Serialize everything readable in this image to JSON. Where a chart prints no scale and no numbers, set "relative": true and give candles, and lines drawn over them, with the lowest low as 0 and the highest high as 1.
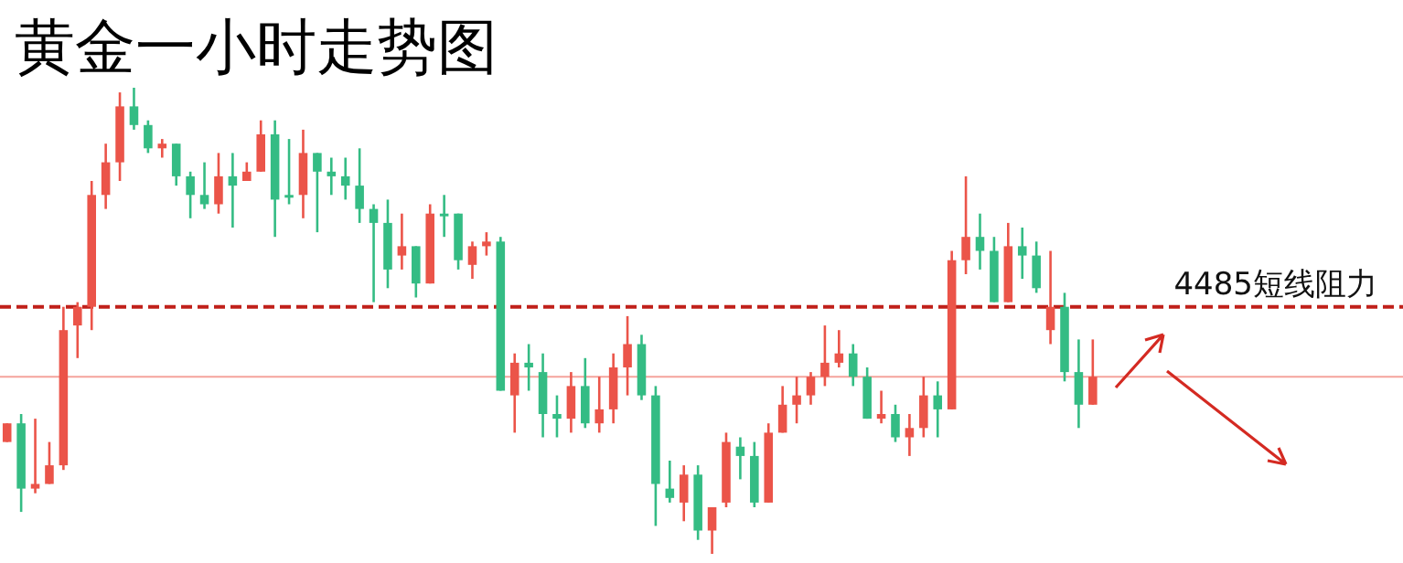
{
  "chart_data": {
    "type": "candlestick",
    "title": "黄金一小时走势图",
    "relative": true,
    "categories": [
      null,
      null,
      null,
      null,
      null,
      null,
      null,
      null,
      null,
      null,
      null,
      null,
      null,
      null,
      null,
      null,
      null,
      null,
      null,
      null,
      null,
      null,
      null,
      null,
      null,
      null,
      null,
      null,
      null,
      null,
      null,
      null,
      null,
      null,
      null,
      null,
      null,
      null,
      null,
      null,
      null,
      null,
      null,
      null,
      null,
      null,
      null,
      null,
      null,
      null,
      null,
      null,
      null,
      null,
      null,
      null,
      null,
      null,
      null,
      null,
      null,
      null,
      null,
      null,
      null,
      null,
      null,
      null,
      null,
      null,
      null,
      null,
      null,
      null,
      null,
      null,
      null,
      null
    ],
    "ohlc": [
      [
        0.24,
        0.28,
        0.24,
        0.28
      ],
      [
        0.28,
        0.3,
        0.09,
        0.14
      ],
      [
        0.14,
        0.29,
        0.13,
        0.15
      ],
      [
        0.15,
        0.24,
        0.15,
        0.19
      ],
      [
        0.19,
        0.53,
        0.18,
        0.48
      ],
      [
        0.49,
        0.54,
        0.42,
        0.53
      ],
      [
        0.53,
        0.8,
        0.48,
        0.77
      ],
      [
        0.77,
        0.88,
        0.74,
        0.84
      ],
      [
        0.84,
        0.99,
        0.8,
        0.96
      ],
      [
        0.96,
        1,
        0.91,
        0.92
      ],
      [
        0.92,
        0.93,
        0.86,
        0.87
      ],
      [
        0.87,
        0.89,
        0.85,
        0.88
      ],
      [
        0.88,
        0.88,
        0.79,
        0.81
      ],
      [
        0.81,
        0.82,
        0.72,
        0.77
      ],
      [
        0.77,
        0.84,
        0.74,
        0.75
      ],
      [
        0.75,
        0.86,
        0.73,
        0.81
      ],
      [
        0.81,
        0.86,
        0.7,
        0.79
      ],
      [
        0.8,
        0.84,
        0.8,
        0.82
      ],
      [
        0.82,
        0.93,
        0.82,
        0.9
      ],
      [
        0.9,
        0.93,
        0.68,
        0.76
      ],
      [
        0.77,
        0.89,
        0.75,
        0.77
      ],
      [
        0.77,
        0.91,
        0.72,
        0.86
      ],
      [
        0.86,
        0.86,
        0.69,
        0.82
      ],
      [
        0.82,
        0.85,
        0.77,
        0.81
      ],
      [
        0.81,
        0.85,
        0.76,
        0.79
      ],
      [
        0.79,
        0.87,
        0.71,
        0.74
      ],
      [
        0.74,
        0.75,
        0.54,
        0.71
      ],
      [
        0.71,
        0.76,
        0.57,
        0.61
      ],
      [
        0.64,
        0.73,
        0.61,
        0.66
      ],
      [
        0.66,
        0.66,
        0.55,
        0.58
      ],
      [
        0.58,
        0.75,
        0.58,
        0.73
      ],
      [
        0.73,
        0.77,
        0.68,
        0.73
      ],
      [
        0.73,
        0.73,
        0.61,
        0.63
      ],
      [
        0.62,
        0.67,
        0.59,
        0.66
      ],
      [
        0.66,
        0.69,
        0.64,
        0.67
      ],
      [
        0.67,
        0.68,
        0.35,
        0.35
      ],
      [
        0.34,
        0.43,
        0.26,
        0.41
      ],
      [
        0.41,
        0.45,
        0.35,
        0.4
      ],
      [
        0.39,
        0.43,
        0.25,
        0.3
      ],
      [
        0.3,
        0.34,
        0.25,
        0.29
      ],
      [
        0.29,
        0.39,
        0.26,
        0.36
      ],
      [
        0.36,
        0.42,
        0.27,
        0.28
      ],
      [
        0.28,
        0.38,
        0.26,
        0.31
      ],
      [
        0.31,
        0.43,
        0.28,
        0.4
      ],
      [
        0.4,
        0.51,
        0.34,
        0.45
      ],
      [
        0.45,
        0.47,
        0.33,
        0.34
      ],
      [
        0.34,
        0.36,
        0.06,
        0.15
      ],
      [
        0.14,
        0.2,
        0.11,
        0.12
      ],
      [
        0.11,
        0.19,
        0.07,
        0.17
      ],
      [
        0.17,
        0.19,
        0.03,
        0.05
      ],
      [
        0.05,
        0.1,
        0,
        0.1
      ],
      [
        0.11,
        0.26,
        0.1,
        0.24
      ],
      [
        0.23,
        0.25,
        0.16,
        0.21
      ],
      [
        0.21,
        0.24,
        0.1,
        0.11
      ],
      [
        0.11,
        0.28,
        0.11,
        0.26
      ],
      [
        0.26,
        0.36,
        0.26,
        0.32
      ],
      [
        0.32,
        0.38,
        0.28,
        0.34
      ],
      [
        0.34,
        0.39,
        0.32,
        0.38
      ],
      [
        0.38,
        0.49,
        0.36,
        0.41
      ],
      [
        0.41,
        0.48,
        0.4,
        0.43
      ],
      [
        0.43,
        0.45,
        0.36,
        0.38
      ],
      [
        0.38,
        0.4,
        0.29,
        0.29
      ],
      [
        0.29,
        0.35,
        0.28,
        0.3
      ],
      [
        0.3,
        0.32,
        0.24,
        0.25
      ],
      [
        0.25,
        0.3,
        0.21,
        0.27
      ],
      [
        0.27,
        0.38,
        0.25,
        0.34
      ],
      [
        0.34,
        0.37,
        0.25,
        0.31
      ],
      [
        0.31,
        0.65,
        0.31,
        0.63
      ],
      [
        0.63,
        0.81,
        0.6,
        0.68
      ],
      [
        0.68,
        0.73,
        0.61,
        0.65
      ],
      [
        0.65,
        0.68,
        0.54,
        0.54
      ],
      [
        0.54,
        0.71,
        0.54,
        0.66
      ],
      [
        0.66,
        0.7,
        0.59,
        0.64
      ],
      [
        0.64,
        0.67,
        0.56,
        0.57
      ],
      [
        0.48,
        0.65,
        0.45,
        0.53
      ],
      [
        0.53,
        0.56,
        0.37,
        0.39
      ],
      [
        0.39,
        0.46,
        0.27,
        0.32
      ],
      [
        0.32,
        0.46,
        0.32,
        0.38
      ]
    ],
    "colors": [
      "#eb5449",
      "#34bc84",
      "#eb5449",
      "#eb5449",
      "#eb5449",
      "#eb5449",
      "#eb5449",
      "#eb5449",
      "#eb5449",
      "#34bc84",
      "#34bc84",
      "#eb5449",
      "#34bc84",
      "#34bc84",
      "#34bc84",
      "#eb5449",
      "#34bc84",
      "#eb5449",
      "#eb5449",
      "#34bc84",
      "#34bc84",
      "#eb5449",
      "#34bc84",
      "#34bc84",
      "#34bc84",
      "#34bc84",
      "#34bc84",
      "#34bc84",
      "#eb5449",
      "#34bc84",
      "#eb5449",
      "#34bc84",
      "#34bc84",
      "#eb5449",
      "#eb5449",
      "#34bc84",
      "#eb5449",
      "#34bc84",
      "#34bc84",
      "#34bc84",
      "#eb5449",
      "#34bc84",
      "#eb5449",
      "#eb5449",
      "#eb5449",
      "#34bc84",
      "#34bc84",
      "#34bc84",
      "#eb5449",
      "#34bc84",
      "#eb5449",
      "#eb5449",
      "#34bc84",
      "#34bc84",
      "#eb5449",
      "#eb5449",
      "#eb5449",
      "#eb5449",
      "#eb5449",
      "#eb5449",
      "#34bc84",
      "#34bc84",
      "#eb5449",
      "#34bc84",
      "#eb5449",
      "#eb5449",
      "#34bc84",
      "#eb5449",
      "#eb5449",
      "#34bc84",
      "#34bc84",
      "#eb5449",
      "#34bc84",
      "#34bc84",
      "#eb5449",
      "#34bc84",
      "#34bc84",
      "#eb5449"
    ],
    "ref_lines": [
      {
        "axis": "y",
        "value": 0.38,
        "color": "#f5a39c",
        "line_style": "solid"
      },
      {
        "axis": "y",
        "value": 0.53,
        "label": "4485短线阻力",
        "color": "#c0201a",
        "line_style": "dashed"
      }
    ]
  }
}
